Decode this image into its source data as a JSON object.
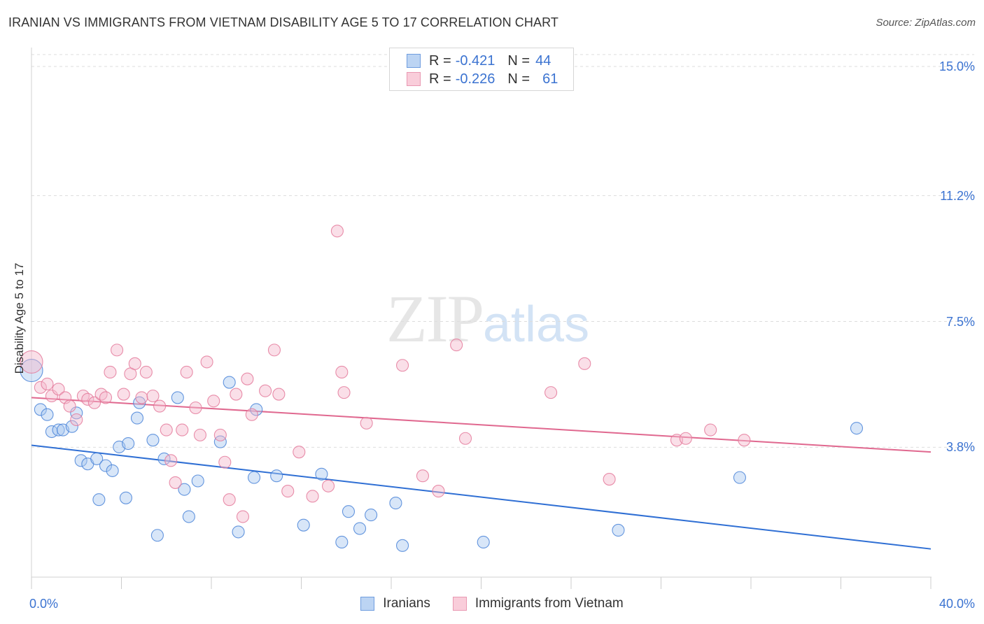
{
  "header": {
    "title": "IRANIAN VS IMMIGRANTS FROM VIETNAM DISABILITY AGE 5 TO 17 CORRELATION CHART",
    "source": "Source: ZipAtlas.com"
  },
  "watermark": {
    "zip": "ZIP",
    "atlas": "atlas"
  },
  "legend": {
    "rows": [
      {
        "r_label": "R =",
        "r_value": "-0.421",
        "n_label": "N =",
        "n_value": "44",
        "color": "#a9c7ef"
      },
      {
        "r_label": "R =",
        "r_value": "-0.226",
        "n_label": "N =",
        "n_value": "61",
        "color": "#f5b8cb"
      }
    ]
  },
  "bottom_legend": {
    "items": [
      {
        "label": "Iranians",
        "color": "#a9c7ef"
      },
      {
        "label": "Immigrants from Vietnam",
        "color": "#f5b8cb"
      }
    ]
  },
  "chart_data": {
    "type": "scatter",
    "title": "IRANIAN VS IMMIGRANTS FROM VIETNAM DISABILITY AGE 5 TO 17 CORRELATION CHART",
    "ylabel": "Disability Age 5 to 17",
    "xlabel": "",
    "xlim": [
      0,
      40
    ],
    "ylim": [
      0,
      15.5
    ],
    "x_tick_labels": [
      "0.0%",
      "40.0%"
    ],
    "y_ticks": [
      3.8,
      7.5,
      11.2,
      15.0
    ],
    "y_tick_labels": [
      "3.8%",
      "7.5%",
      "11.2%",
      "15.0%"
    ],
    "grid": "horizontal dashed",
    "legend_position": "top-center",
    "series": [
      {
        "name": "Iranians",
        "color": "#a9c7ef",
        "stroke": "#4a84d8",
        "line_color": "#2f6fd4",
        "trend": {
          "x": [
            0,
            40
          ],
          "y": [
            3.9,
            0.85
          ]
        },
        "points": [
          {
            "x": 0.0,
            "y": 6.1,
            "s": 16
          },
          {
            "x": 0.4,
            "y": 4.95
          },
          {
            "x": 0.7,
            "y": 4.8
          },
          {
            "x": 0.9,
            "y": 4.3
          },
          {
            "x": 1.2,
            "y": 4.35
          },
          {
            "x": 1.4,
            "y": 4.35
          },
          {
            "x": 1.8,
            "y": 4.45
          },
          {
            "x": 2.0,
            "y": 4.85
          },
          {
            "x": 2.2,
            "y": 3.45
          },
          {
            "x": 2.5,
            "y": 3.35
          },
          {
            "x": 2.9,
            "y": 3.5
          },
          {
            "x": 3.0,
            "y": 2.3
          },
          {
            "x": 3.3,
            "y": 3.3
          },
          {
            "x": 3.6,
            "y": 3.15
          },
          {
            "x": 3.9,
            "y": 3.85
          },
          {
            "x": 4.2,
            "y": 2.35
          },
          {
            "x": 4.3,
            "y": 3.95
          },
          {
            "x": 4.7,
            "y": 4.7
          },
          {
            "x": 4.8,
            "y": 5.15
          },
          {
            "x": 5.4,
            "y": 4.05
          },
          {
            "x": 5.6,
            "y": 1.25
          },
          {
            "x": 5.9,
            "y": 3.5
          },
          {
            "x": 6.5,
            "y": 5.3
          },
          {
            "x": 6.8,
            "y": 2.6
          },
          {
            "x": 7.0,
            "y": 1.8
          },
          {
            "x": 7.4,
            "y": 2.85
          },
          {
            "x": 8.4,
            "y": 4.0
          },
          {
            "x": 8.8,
            "y": 5.75
          },
          {
            "x": 9.2,
            "y": 1.35
          },
          {
            "x": 9.9,
            "y": 2.95
          },
          {
            "x": 10.0,
            "y": 4.95
          },
          {
            "x": 10.9,
            "y": 3.0
          },
          {
            "x": 12.1,
            "y": 1.55
          },
          {
            "x": 12.9,
            "y": 3.05
          },
          {
            "x": 13.8,
            "y": 1.05
          },
          {
            "x": 14.1,
            "y": 1.95
          },
          {
            "x": 14.6,
            "y": 1.45
          },
          {
            "x": 15.1,
            "y": 1.85
          },
          {
            "x": 16.2,
            "y": 2.2
          },
          {
            "x": 16.5,
            "y": 0.95
          },
          {
            "x": 20.1,
            "y": 1.05
          },
          {
            "x": 26.1,
            "y": 1.4
          },
          {
            "x": 31.5,
            "y": 2.95
          },
          {
            "x": 36.7,
            "y": 4.4
          }
        ]
      },
      {
        "name": "Immigrants from Vietnam",
        "color": "#f5b8cb",
        "stroke": "#e47a9b",
        "line_color": "#e0688f",
        "trend": {
          "x": [
            0,
            40
          ],
          "y": [
            5.3,
            3.7
          ]
        },
        "points": [
          {
            "x": 0.0,
            "y": 6.35,
            "s": 16
          },
          {
            "x": 0.4,
            "y": 5.6
          },
          {
            "x": 0.7,
            "y": 5.7
          },
          {
            "x": 0.9,
            "y": 5.35
          },
          {
            "x": 1.2,
            "y": 5.55
          },
          {
            "x": 1.5,
            "y": 5.3
          },
          {
            "x": 1.7,
            "y": 5.05
          },
          {
            "x": 2.0,
            "y": 4.65
          },
          {
            "x": 2.3,
            "y": 5.35
          },
          {
            "x": 2.5,
            "y": 5.25
          },
          {
            "x": 2.8,
            "y": 5.15
          },
          {
            "x": 3.1,
            "y": 5.4
          },
          {
            "x": 3.3,
            "y": 5.3
          },
          {
            "x": 3.5,
            "y": 6.05
          },
          {
            "x": 3.8,
            "y": 6.7
          },
          {
            "x": 4.1,
            "y": 5.4
          },
          {
            "x": 4.4,
            "y": 6.0
          },
          {
            "x": 4.6,
            "y": 6.3
          },
          {
            "x": 4.9,
            "y": 5.3
          },
          {
            "x": 5.1,
            "y": 6.05
          },
          {
            "x": 5.4,
            "y": 5.35
          },
          {
            "x": 5.7,
            "y": 5.05
          },
          {
            "x": 6.0,
            "y": 4.35
          },
          {
            "x": 6.2,
            "y": 3.45
          },
          {
            "x": 6.4,
            "y": 2.8
          },
          {
            "x": 6.7,
            "y": 4.35
          },
          {
            "x": 6.9,
            "y": 6.05
          },
          {
            "x": 7.3,
            "y": 5.0
          },
          {
            "x": 7.5,
            "y": 4.2
          },
          {
            "x": 7.8,
            "y": 6.35
          },
          {
            "x": 8.1,
            "y": 5.2
          },
          {
            "x": 8.4,
            "y": 4.2
          },
          {
            "x": 8.6,
            "y": 3.4
          },
          {
            "x": 8.8,
            "y": 2.3
          },
          {
            "x": 9.1,
            "y": 5.4
          },
          {
            "x": 9.4,
            "y": 1.8
          },
          {
            "x": 9.8,
            "y": 4.8
          },
          {
            "x": 9.6,
            "y": 5.85
          },
          {
            "x": 10.4,
            "y": 5.5
          },
          {
            "x": 10.8,
            "y": 6.7
          },
          {
            "x": 11.0,
            "y": 5.4
          },
          {
            "x": 11.4,
            "y": 2.55
          },
          {
            "x": 11.9,
            "y": 3.7
          },
          {
            "x": 12.5,
            "y": 2.4
          },
          {
            "x": 13.2,
            "y": 2.7
          },
          {
            "x": 13.6,
            "y": 10.2
          },
          {
            "x": 13.8,
            "y": 6.05
          },
          {
            "x": 13.9,
            "y": 5.45
          },
          {
            "x": 14.9,
            "y": 4.55
          },
          {
            "x": 16.5,
            "y": 6.25
          },
          {
            "x": 17.4,
            "y": 3.0
          },
          {
            "x": 18.1,
            "y": 2.55
          },
          {
            "x": 18.9,
            "y": 6.85
          },
          {
            "x": 19.3,
            "y": 4.1
          },
          {
            "x": 23.1,
            "y": 5.45
          },
          {
            "x": 24.6,
            "y": 6.3
          },
          {
            "x": 25.7,
            "y": 2.9
          },
          {
            "x": 28.7,
            "y": 4.05
          },
          {
            "x": 29.1,
            "y": 4.1
          },
          {
            "x": 30.2,
            "y": 4.35
          },
          {
            "x": 31.7,
            "y": 4.05
          }
        ]
      }
    ]
  }
}
